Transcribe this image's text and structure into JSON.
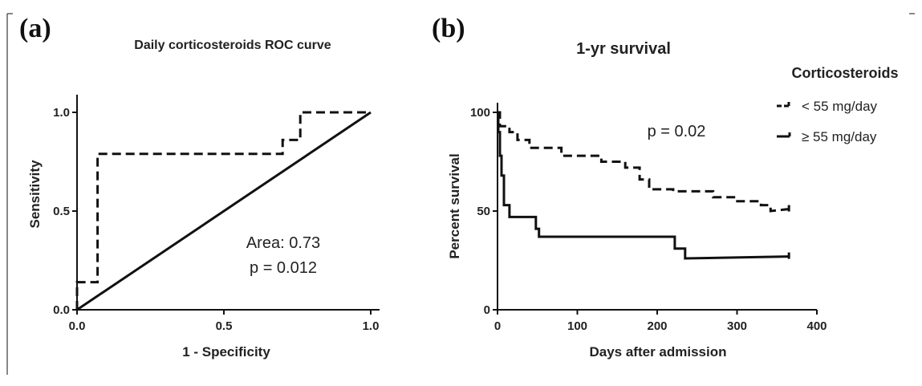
{
  "colors": {
    "line": "#111111",
    "background": "#ffffff"
  },
  "chart_data": [
    {
      "panel_label": "(a)",
      "type": "line",
      "title": "Daily corticosteroids ROC curve",
      "xlabel": "1 - Specificity",
      "ylabel": "Sensitivity",
      "xlim": [
        0,
        1
      ],
      "ylim": [
        0,
        1
      ],
      "xticks": [
        "0.0",
        "0.5",
        "1.0"
      ],
      "yticks": [
        "0.0",
        "0.5",
        "1.0"
      ],
      "grid": false,
      "annotations": {
        "area": "Area: 0.73",
        "p": "p = 0.012"
      },
      "series": [
        {
          "style": "dashed",
          "x": [
            0.0,
            0.0,
            0.07,
            0.07,
            0.7,
            0.7,
            0.76,
            0.76,
            1.0
          ],
          "y": [
            0.0,
            0.14,
            0.14,
            0.79,
            0.79,
            0.86,
            0.86,
            1.0,
            1.0
          ]
        },
        {
          "style": "solid",
          "x": [
            0.0,
            1.0
          ],
          "y": [
            0.0,
            1.0
          ]
        }
      ]
    },
    {
      "panel_label": "(b)",
      "type": "line",
      "title": "1-yr survival",
      "xlabel": "Days after admission",
      "ylabel": "Percent survival",
      "xlim": [
        0,
        400
      ],
      "ylim": [
        0,
        100
      ],
      "xticks": [
        "0",
        "100",
        "200",
        "300",
        "400"
      ],
      "yticks": [
        "0",
        "50",
        "100"
      ],
      "grid": false,
      "annotations": {
        "p": "p = 0.02"
      },
      "legend": {
        "title": "Corticosteroids",
        "placement": "top-right",
        "items": [
          "< 55 mg/day",
          "≥  55 mg/day"
        ]
      },
      "series": [
        {
          "name": "< 55 mg/day",
          "style": "dashed",
          "x": [
            0,
            3,
            3,
            15,
            15,
            25,
            25,
            40,
            40,
            80,
            80,
            130,
            130,
            160,
            160,
            178,
            178,
            190,
            190,
            220,
            220,
            270,
            270,
            298,
            298,
            330,
            330,
            342,
            342,
            365
          ],
          "y": [
            100,
            100,
            93,
            93,
            90,
            90,
            86,
            86,
            82,
            82,
            78,
            78,
            75,
            75,
            72,
            72,
            66,
            66,
            61,
            61,
            60,
            60,
            57,
            57,
            55,
            55,
            53,
            53,
            50,
            51
          ]
        },
        {
          "name": "≥  55 mg/day",
          "style": "solid",
          "x": [
            0,
            1,
            1,
            3,
            3,
            5,
            5,
            8,
            8,
            15,
            15,
            48,
            48,
            52,
            52,
            222,
            222,
            235,
            235,
            365
          ],
          "y": [
            100,
            100,
            90,
            90,
            78,
            78,
            68,
            68,
            53,
            53,
            47,
            47,
            41,
            41,
            37,
            37,
            31,
            31,
            26,
            27
          ]
        }
      ]
    }
  ]
}
